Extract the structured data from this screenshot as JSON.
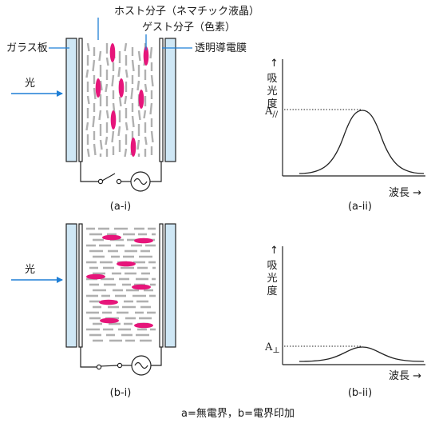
{
  "labels": {
    "host_molecule": "ホスト分子（ネマチック液晶）",
    "guest_molecule": "ゲスト分子（色素）",
    "glass_plate": "ガラス板",
    "transparent_electrode": "透明導電膜",
    "light_top": "光",
    "light_bottom": "光"
  },
  "panels": {
    "a_i": "(a-i)",
    "a_ii": "(a-ii)",
    "b_i": "(b-i)",
    "b_ii": "(b-ii)"
  },
  "graphs": {
    "top": {
      "ylabel": "吸光度",
      "xlabel": "波長",
      "peak_label": "A",
      "peak_subscript": "//"
    },
    "bottom": {
      "ylabel": "吸光度",
      "xlabel": "波長",
      "peak_label": "A",
      "peak_subscript": "⊥"
    }
  },
  "footer": "a=無電界，b=電界印加",
  "colors": {
    "glass": "#cfe7f5",
    "host": "#b0b0b0",
    "guest": "#e6157a",
    "arrow": "#1f7fd6",
    "line": "#000000"
  }
}
